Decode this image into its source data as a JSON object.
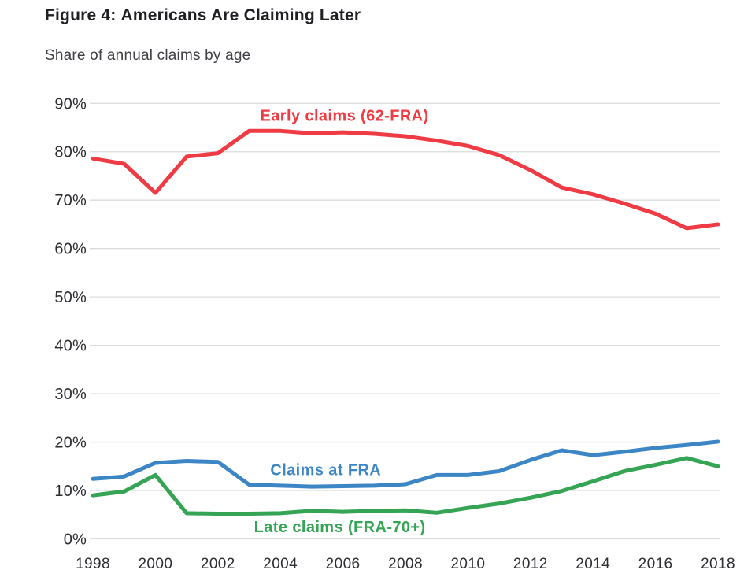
{
  "header": {
    "figure_label": "Figure 4:",
    "title": "Americans Are Claiming Later",
    "subtitle": "Share of annual claims by age"
  },
  "colors": {
    "early_red": "#ef3c44",
    "fra_blue": "#3d86c6",
    "late_green": "#35a455",
    "grid": "#d9dddc",
    "axis_text": "#2d2d32"
  },
  "chart_data": {
    "type": "line",
    "title": "Figure 4: Americans Are Claiming Later",
    "subtitle": "Share of annual claims by age",
    "xlabel": "",
    "ylabel": "",
    "ylim": [
      0,
      90
    ],
    "grid": "horizontal",
    "legend": "inline-labels",
    "x": [
      1998,
      1999,
      2000,
      2001,
      2002,
      2003,
      2004,
      2005,
      2006,
      2007,
      2008,
      2009,
      2010,
      2011,
      2012,
      2013,
      2014,
      2015,
      2016,
      2017,
      2018
    ],
    "series": [
      {
        "name": "Early claims (62-FRA)",
        "slug": "early-claims",
        "color": "#ef3c44",
        "values": [
          78.6,
          77.5,
          71.5,
          79.0,
          79.7,
          84.3,
          84.3,
          83.8,
          84.0,
          83.7,
          83.2,
          82.3,
          81.2,
          79.3,
          76.2,
          72.6,
          71.2,
          69.3,
          67.2,
          64.2,
          65.0
        ],
        "label_anchor": {
          "year": 2006.05,
          "pct": 87.5
        }
      },
      {
        "name": "Claims at FRA",
        "slug": "claims-at-fra",
        "color": "#3d86c6",
        "values": [
          12.4,
          12.9,
          15.7,
          16.1,
          15.9,
          11.2,
          11.0,
          10.8,
          10.9,
          11.0,
          11.3,
          13.2,
          13.2,
          14.0,
          16.3,
          18.3,
          17.3,
          18.0,
          18.8,
          19.4,
          20.1
        ],
        "label_anchor": {
          "year": 2005.45,
          "pct": 14.3
        }
      },
      {
        "name": "Late claims (FRA-70+)",
        "slug": "late-claims",
        "color": "#35a455",
        "values": [
          9.0,
          9.8,
          13.2,
          5.3,
          5.2,
          5.2,
          5.3,
          5.8,
          5.6,
          5.8,
          5.9,
          5.4,
          6.4,
          7.3,
          8.5,
          9.9,
          11.9,
          14.0,
          15.3,
          16.7,
          15.0
        ],
        "label_anchor": {
          "year": 2005.9,
          "pct": 2.5
        }
      }
    ],
    "yticks": [
      0,
      10,
      20,
      30,
      40,
      50,
      60,
      70,
      80,
      90
    ],
    "ytick_labels": [
      "0%",
      "10%",
      "20%",
      "30%",
      "40%",
      "50%",
      "60%",
      "70%",
      "80%",
      "90%"
    ],
    "xticks": [
      1998,
      2000,
      2002,
      2004,
      2006,
      2008,
      2010,
      2012,
      2014,
      2016,
      2018
    ],
    "xtick_labels": [
      "1998",
      "2000",
      "2002",
      "2004",
      "2006",
      "2008",
      "2010",
      "2012",
      "2014",
      "2016",
      "2018"
    ]
  }
}
